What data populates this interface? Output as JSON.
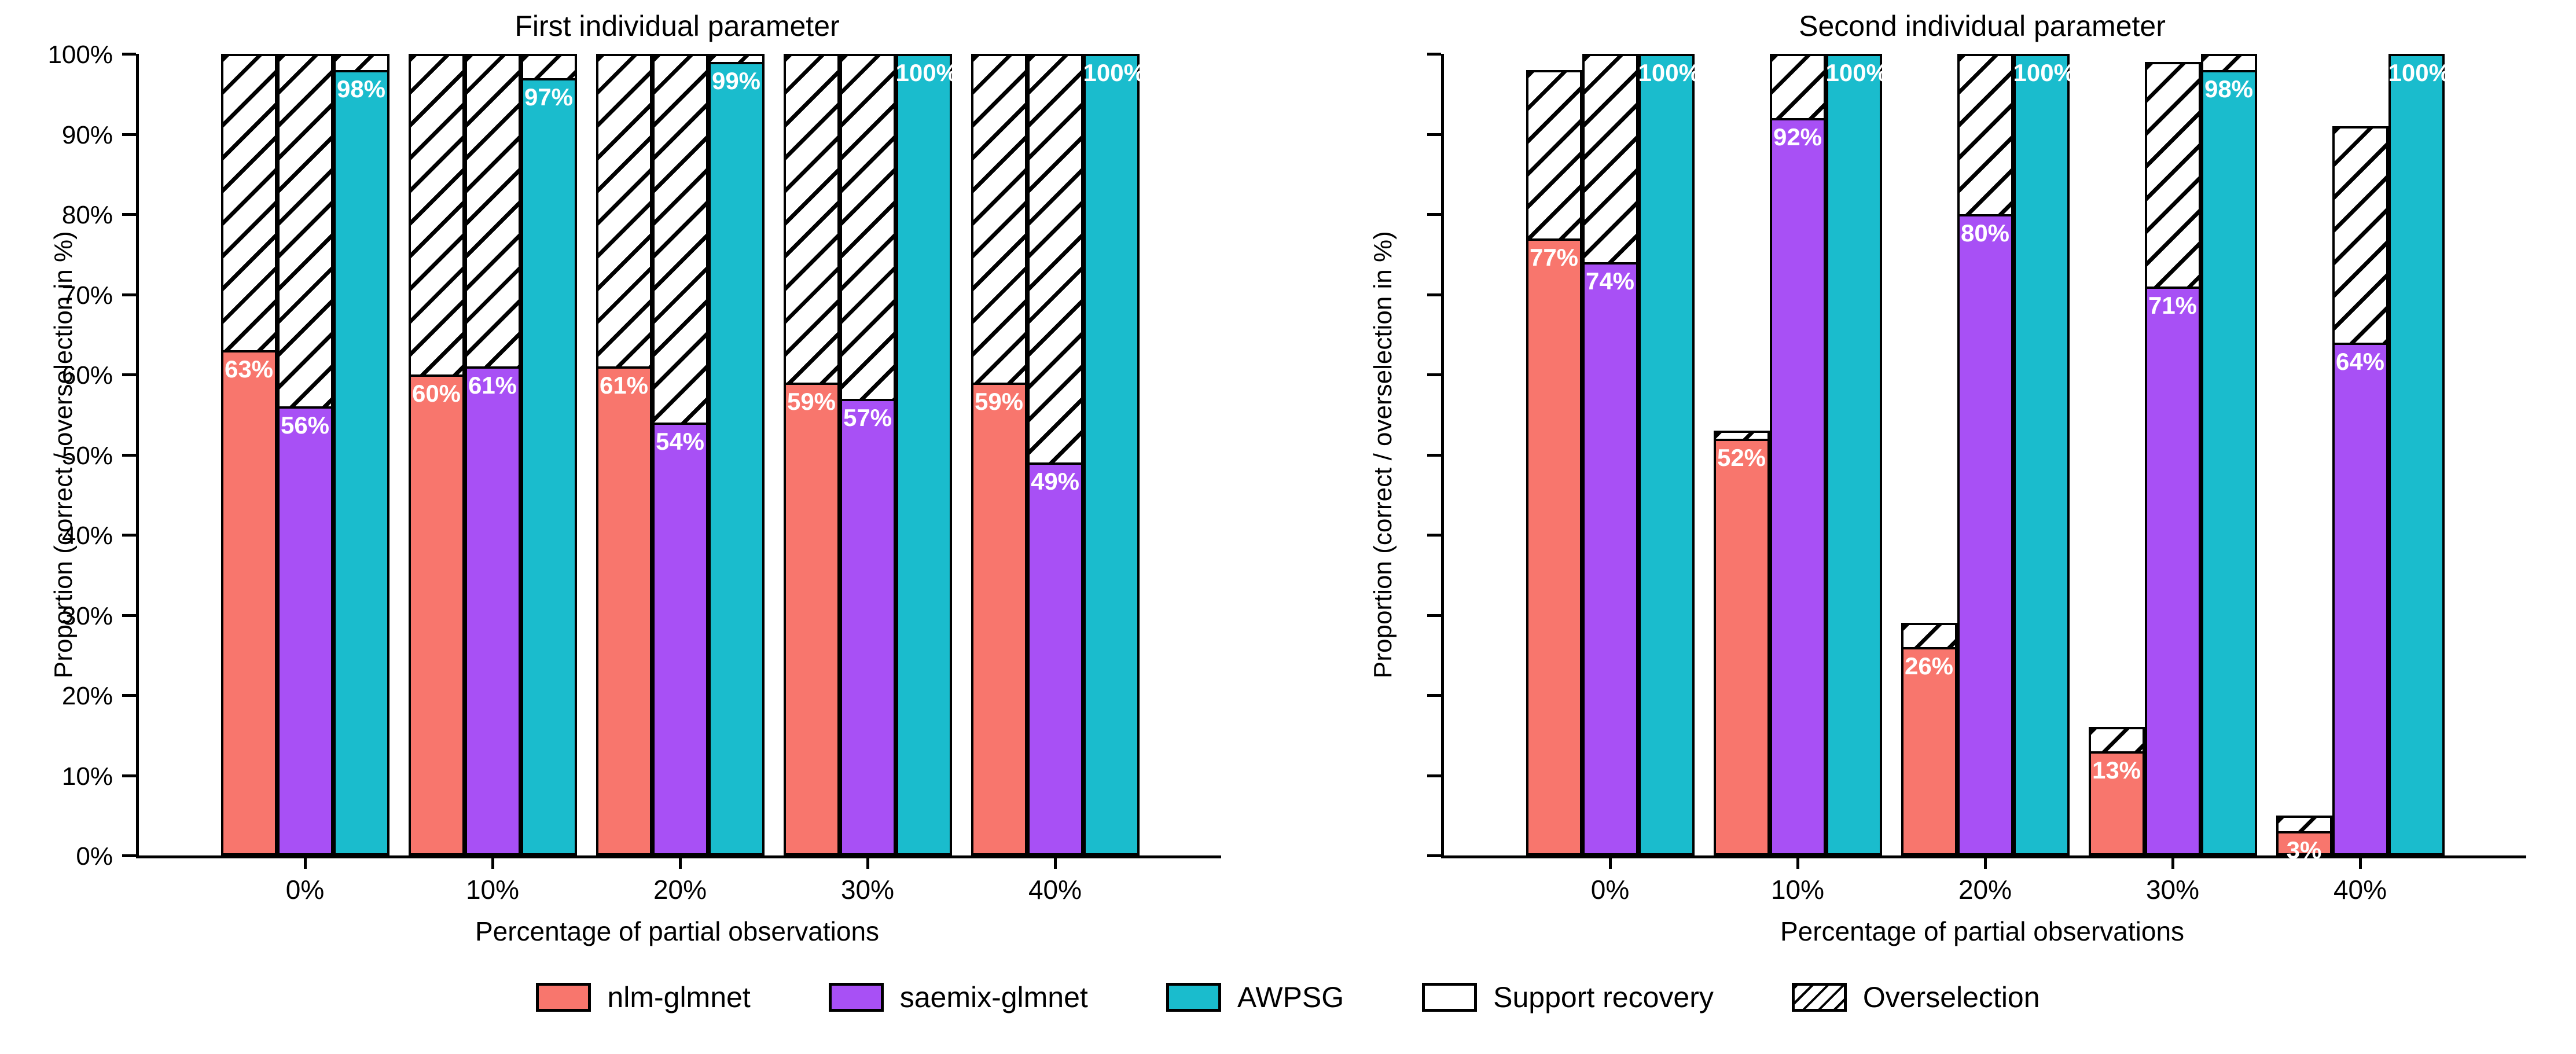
{
  "figure": {
    "background": "#ffffff",
    "xlabel": "Percentage of partial observations",
    "ylabel": "Proportion (correct / overselection in %)",
    "x_tick_labels": [
      "0%",
      "10%",
      "20%",
      "30%",
      "40%"
    ],
    "y_tick_labels": [
      "0%",
      "10%",
      "20%",
      "30%",
      "40%",
      "50%",
      "60%",
      "70%",
      "80%",
      "90%",
      "100%"
    ],
    "axis_color": "#000000",
    "bar_edge_color": "#000000",
    "bar_label_text_color": "#ffffff"
  },
  "legend": {
    "items": [
      {
        "label": "nlm-glmnet",
        "swatch": "fill",
        "color": "#F8766D"
      },
      {
        "label": "saemix-glmnet",
        "swatch": "fill",
        "color": "#A850F5"
      },
      {
        "label": "AWPSG",
        "swatch": "fill",
        "color": "#1ABCCD"
      },
      {
        "label": "Support recovery",
        "swatch": "fill",
        "color": "#FFFFFF"
      },
      {
        "label": "Overselection",
        "swatch": "hatch",
        "color": "#FFFFFF"
      }
    ]
  },
  "chart_data": [
    {
      "type": "bar",
      "title": "First individual parameter",
      "xlabel": "Percentage of partial observations",
      "ylabel": "Proportion (correct / overselection in %)",
      "categories": [
        "0%",
        "10%",
        "20%",
        "30%",
        "40%"
      ],
      "ylim": [
        0,
        100
      ],
      "y_ticks_percent": [
        0,
        10,
        20,
        30,
        40,
        50,
        60,
        70,
        80,
        90,
        100
      ],
      "show_y_tick_labels": true,
      "grid": false,
      "series": [
        {
          "name": "nlm-glmnet",
          "color": "#F8766D",
          "support_recovery": [
            63,
            60,
            61,
            59,
            59
          ],
          "overselection_total": [
            100,
            100,
            100,
            100,
            100
          ],
          "bar_labels": [
            "63%",
            "60%",
            "61%",
            "59%",
            "59%"
          ]
        },
        {
          "name": "saemix-glmnet",
          "color": "#A850F5",
          "support_recovery": [
            56,
            61,
            54,
            57,
            49
          ],
          "overselection_total": [
            100,
            100,
            100,
            100,
            100
          ],
          "bar_labels": [
            "56%",
            "61%",
            "54%",
            "57%",
            "49%"
          ]
        },
        {
          "name": "AWPSG",
          "color": "#1ABCCD",
          "support_recovery": [
            98,
            97,
            99,
            100,
            100
          ],
          "overselection_total": [
            100,
            100,
            100,
            100,
            100
          ],
          "bar_labels": [
            "98%",
            "97%",
            "99%",
            "100%",
            "100%"
          ]
        }
      ]
    },
    {
      "type": "bar",
      "title": "Second individual parameter",
      "xlabel": "Percentage of partial observations",
      "ylabel": "Proportion (correct / overselection in %)",
      "categories": [
        "0%",
        "10%",
        "20%",
        "30%",
        "40%"
      ],
      "ylim": [
        0,
        100
      ],
      "y_ticks_percent": [
        0,
        10,
        20,
        30,
        40,
        50,
        60,
        70,
        80,
        90,
        100
      ],
      "show_y_tick_labels": false,
      "grid": false,
      "series": [
        {
          "name": "nlm-glmnet",
          "color": "#F8766D",
          "support_recovery": [
            77,
            52,
            26,
            13,
            3
          ],
          "overselection_total": [
            98,
            53,
            29,
            16,
            5
          ],
          "bar_labels": [
            "77%",
            "52%",
            "26%",
            "13%",
            "3%"
          ]
        },
        {
          "name": "saemix-glmnet",
          "color": "#A850F5",
          "support_recovery": [
            74,
            92,
            80,
            71,
            64
          ],
          "overselection_total": [
            100,
            100,
            100,
            99,
            91
          ],
          "bar_labels": [
            "74%",
            "92%",
            "80%",
            "71%",
            "64%"
          ]
        },
        {
          "name": "AWPSG",
          "color": "#1ABCCD",
          "support_recovery": [
            100,
            100,
            100,
            98,
            100
          ],
          "overselection_total": [
            100,
            100,
            100,
            100,
            100
          ],
          "bar_labels": [
            "100%",
            "100%",
            "100%",
            "98%",
            "100%"
          ]
        }
      ]
    }
  ]
}
